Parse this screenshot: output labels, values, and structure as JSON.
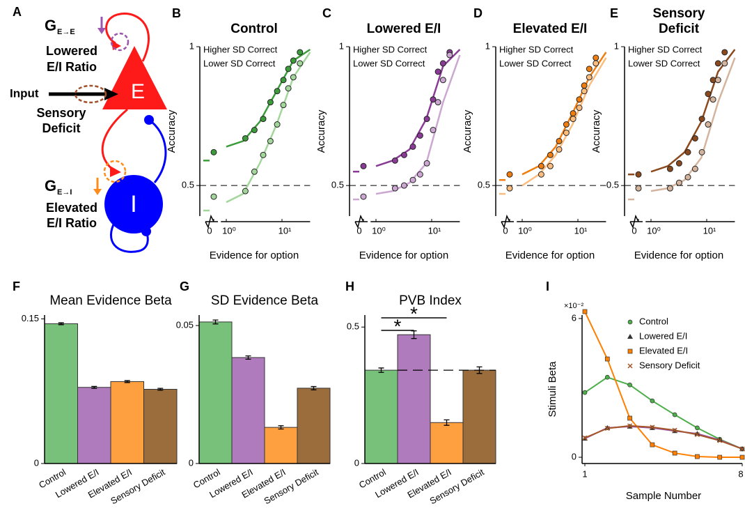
{
  "diagram": {
    "panel": "A",
    "ee_gain": {
      "main": "G",
      "sub": "E→E"
    },
    "ee_effect": [
      "Lowered",
      "E/I Ratio"
    ],
    "input": "Input",
    "sensory_effect": [
      "Sensory",
      "Deficit"
    ],
    "ei_gain": {
      "main": "G",
      "sub": "E→I"
    },
    "ei_effect": [
      "Elevated",
      "E/I Ratio"
    ],
    "e_node": "E",
    "i_node": "I"
  },
  "chart_data": [
    {
      "type": "scatter",
      "panel": "B",
      "title_lines": [
        "Control"
      ],
      "x_label": "Evidence for option",
      "y_label": "Accuracy",
      "xscale": "log",
      "xlim": [
        0.8,
        32
      ],
      "ylim": [
        0.39,
        1
      ],
      "xticks": [
        0,
        {
          "value": 1,
          "label": "10⁰"
        },
        {
          "value": 10,
          "label": "10¹"
        }
      ],
      "yticks": [
        0.5,
        1
      ],
      "hline": 0.5,
      "x": [
        0,
        2.2,
        3.2,
        4.6,
        6.2,
        8.2,
        10.6,
        13,
        16,
        21
      ],
      "fit_x": [
        0,
        1,
        2,
        4,
        8,
        16,
        32
      ],
      "series": [
        {
          "name": "Higher SD Correct",
          "color": "#3c9c3c",
          "values": [
            0.62,
            0.67,
            0.7,
            0.74,
            0.8,
            0.84,
            0.88,
            0.92,
            0.95,
            0.98
          ],
          "fit": [
            0.59,
            0.64,
            0.66,
            0.73,
            0.84,
            0.95,
            0.99
          ]
        },
        {
          "name": "Lower SD Correct",
          "color": "#a3d69b",
          "values": [
            0.46,
            0.48,
            0.55,
            0.61,
            0.66,
            0.72,
            0.79,
            0.85,
            0.89,
            0.94
          ],
          "fit": [
            0.41,
            0.44,
            0.47,
            0.58,
            0.72,
            0.89,
            0.98
          ]
        }
      ]
    },
    {
      "type": "scatter",
      "panel": "C",
      "title_lines": [
        "Lowered E/I"
      ],
      "x_label": "Evidence for option",
      "y_label": "Accuracy",
      "xscale": "log",
      "xlim": [
        0.8,
        32
      ],
      "ylim": [
        0.39,
        1
      ],
      "xticks": [
        0,
        {
          "value": 1,
          "label": "10⁰"
        },
        {
          "value": 10,
          "label": "10¹"
        }
      ],
      "yticks": [
        0.5,
        1
      ],
      "hline": 0.5,
      "x": [
        0,
        2.2,
        3.2,
        4.6,
        6.2,
        8.2,
        10.6,
        13,
        16,
        21
      ],
      "fit_x": [
        0,
        1,
        2,
        4,
        8,
        16,
        32
      ],
      "series": [
        {
          "name": "Higher SD Correct",
          "color": "#8a3b96",
          "values": [
            0.57,
            0.59,
            0.61,
            0.64,
            0.68,
            0.74,
            0.81,
            0.91,
            0.94,
            0.98
          ],
          "fit": [
            0.55,
            0.57,
            0.59,
            0.63,
            0.74,
            0.93,
            0.99
          ]
        },
        {
          "name": "Lower SD Correct",
          "color": "#cba7d2",
          "values": [
            0.46,
            0.49,
            0.5,
            0.52,
            0.54,
            0.58,
            0.7,
            0.8,
            0.88,
            0.97
          ],
          "fit": [
            0.45,
            0.47,
            0.48,
            0.51,
            0.58,
            0.8,
            0.97
          ]
        }
      ]
    },
    {
      "type": "scatter",
      "panel": "D",
      "title_lines": [
        "Elevated E/I"
      ],
      "x_label": "Evidence for option",
      "y_label": "Accuracy",
      "xscale": "log",
      "xlim": [
        0.8,
        32
      ],
      "ylim": [
        0.39,
        1
      ],
      "xticks": [
        0,
        {
          "value": 1,
          "label": "10⁰"
        },
        {
          "value": 10,
          "label": "10¹"
        }
      ],
      "yticks": [
        0.5,
        1
      ],
      "hline": 0.5,
      "x": [
        0,
        2.2,
        3.2,
        4.6,
        6.2,
        8.2,
        10.6,
        13,
        16,
        21
      ],
      "fit_x": [
        0,
        1,
        2,
        4,
        8,
        16,
        32
      ],
      "series": [
        {
          "name": "Higher SD Correct",
          "color": "#f07d10",
          "values": [
            0.54,
            0.57,
            0.61,
            0.66,
            0.72,
            0.76,
            0.81,
            0.86,
            0.92,
            0.96
          ],
          "fit": [
            0.52,
            0.54,
            0.57,
            0.64,
            0.76,
            0.89,
            0.98
          ]
        },
        {
          "name": "Lower SD Correct",
          "color": "#fbbd7e",
          "values": [
            0.49,
            0.54,
            0.57,
            0.63,
            0.69,
            0.74,
            0.78,
            0.84,
            0.89,
            0.94
          ],
          "fit": [
            0.47,
            0.5,
            0.54,
            0.61,
            0.72,
            0.86,
            0.96
          ]
        }
      ]
    },
    {
      "type": "scatter",
      "panel": "E",
      "title_lines": [
        "Sensory",
        "Deficit"
      ],
      "x_label": "Evidence for option",
      "y_label": "Accuracy",
      "xscale": "log",
      "xlim": [
        0.8,
        32
      ],
      "ylim": [
        0.39,
        1
      ],
      "xticks": [
        0,
        {
          "value": 1,
          "label": "10⁰"
        },
        {
          "value": 10,
          "label": "10¹"
        }
      ],
      "yticks": [
        0.5,
        1
      ],
      "hline": 0.5,
      "x": [
        0,
        2.2,
        3.2,
        4.6,
        6.2,
        8.2,
        10.6,
        13,
        16,
        21
      ],
      "fit_x": [
        0,
        1,
        2,
        4,
        8,
        16,
        32
      ],
      "series": [
        {
          "name": "Higher SD Correct",
          "color": "#8b4a1e",
          "values": [
            0.54,
            0.56,
            0.58,
            0.62,
            0.67,
            0.74,
            0.83,
            0.88,
            0.94,
            0.98
          ],
          "fit": [
            0.54,
            0.55,
            0.57,
            0.62,
            0.73,
            0.91,
            0.99
          ]
        },
        {
          "name": "Lower SD Correct",
          "color": "#d4b49d",
          "values": [
            0.49,
            0.49,
            0.51,
            0.53,
            0.56,
            0.62,
            0.72,
            0.81,
            0.88,
            0.94
          ],
          "fit": [
            0.45,
            0.48,
            0.49,
            0.52,
            0.6,
            0.8,
            0.96
          ]
        }
      ]
    },
    {
      "type": "bar",
      "panel": "F",
      "title": "Mean Evidence Beta",
      "categories": [
        "Control",
        "Lowered E/I",
        "Elevated E/I",
        "Sensory Deficit"
      ],
      "values": [
        0.145,
        0.079,
        0.085,
        0.077
      ],
      "errors": [
        0.001,
        0.001,
        0.001,
        0.001
      ],
      "colors": [
        "#77c17a",
        "#b07bbd",
        "#ffa040",
        "#9b6d3c"
      ],
      "ylim": [
        0,
        0.154
      ],
      "yticks": [
        0,
        0.15
      ]
    },
    {
      "type": "bar",
      "panel": "G",
      "title": "SD Evidence Beta",
      "categories": [
        "Control",
        "Lowered E/I",
        "Elevated E/I",
        "Sensory Deficit"
      ],
      "values": [
        0.0513,
        0.0384,
        0.0131,
        0.0273
      ],
      "errors": [
        0.0007,
        0.0006,
        0.0006,
        0.0006
      ],
      "colors": [
        "#77c17a",
        "#b07bbd",
        "#ffa040",
        "#9b6d3c"
      ],
      "ylim": [
        0,
        0.0538
      ],
      "yticks": [
        0,
        0.05
      ]
    },
    {
      "type": "bar",
      "panel": "H",
      "title": "PVB Index",
      "categories": [
        "Control",
        "Lowered E/I",
        "Elevated E/I",
        "Sensory Deficit"
      ],
      "values": [
        0.342,
        0.472,
        0.15,
        0.342
      ],
      "errors": [
        0.008,
        0.014,
        0.01,
        0.012
      ],
      "colors": [
        "#77c17a",
        "#b07bbd",
        "#ffa040",
        "#9b6d3c"
      ],
      "ylim": [
        0,
        0.544
      ],
      "yticks": [
        0,
        0.5
      ],
      "reference_line": 0.342,
      "significance": [
        {
          "label": "*",
          "pair": [
            0,
            1
          ]
        },
        {
          "label": "*",
          "pair": [
            0,
            2
          ]
        }
      ]
    },
    {
      "type": "line",
      "panel": "I",
      "y_label": "Stimuli Beta",
      "x_label": "Sample Number",
      "y_multiplier": "×10⁻²",
      "x": [
        1,
        2,
        3,
        4,
        5,
        6,
        7,
        8
      ],
      "xlim": [
        1,
        8
      ],
      "xticks": [
        1,
        8
      ],
      "ylim": [
        -0.27,
        6.15
      ],
      "yticks": [
        0,
        6
      ],
      "series": [
        {
          "name": "Control",
          "color": "#4daf4a",
          "marker": "circle",
          "values": [
            2.8,
            3.46,
            3.13,
            2.44,
            1.84,
            1.27,
            0.78,
            0.36
          ]
        },
        {
          "name": "Lowered E/I",
          "color": "#984ea3",
          "marker": "triangle",
          "values": [
            0.81,
            1.27,
            1.33,
            1.27,
            1.14,
            1.02,
            0.75,
            0.36
          ]
        },
        {
          "name": "Elevated E/I",
          "color": "#ff7f00",
          "marker": "square",
          "values": [
            6.3,
            4.25,
            1.69,
            0.54,
            0.18,
            0.03,
            0,
            0
          ]
        },
        {
          "name": "Sensory Deficit",
          "color": "#a65628",
          "marker": "cross",
          "values": [
            0.84,
            1.25,
            1.36,
            1.3,
            1.17,
            0.98,
            0.72,
            0.36
          ]
        }
      ]
    }
  ]
}
